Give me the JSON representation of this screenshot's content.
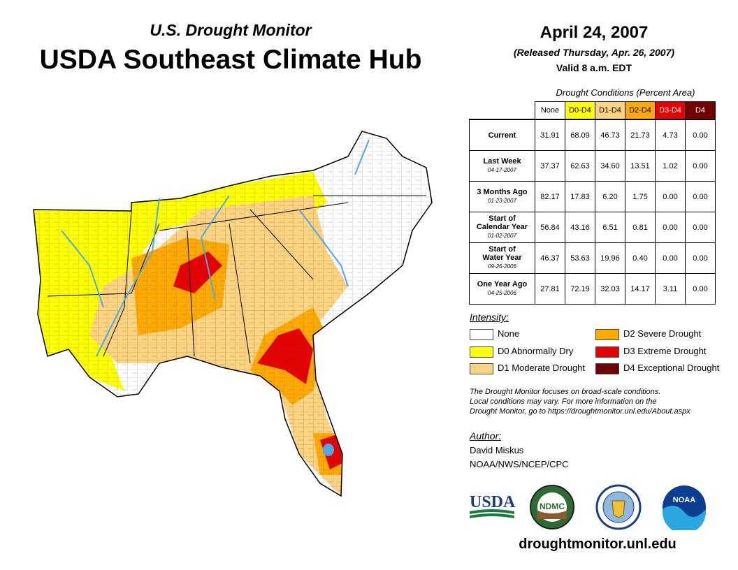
{
  "header": {
    "super_title": "U.S. Drought Monitor",
    "title": "USDA Southeast Climate Hub",
    "date": "April 24, 2007",
    "released": "(Released Thursday, Apr. 26, 2007)",
    "valid": "Valid 8 a.m. EDT"
  },
  "table": {
    "caption": "Drought Conditions (Percent Area)",
    "columns": [
      {
        "label": "None",
        "color": "#ffffff"
      },
      {
        "label": "D0-D4",
        "color": "#ffff00"
      },
      {
        "label": "D1-D4",
        "color": "#fcd37f"
      },
      {
        "label": "D2-D4",
        "color": "#ffaa00"
      },
      {
        "label": "D3-D4",
        "color": "#e60000"
      },
      {
        "label": "D4",
        "color": "#730000"
      }
    ],
    "rows": [
      {
        "line1": "Current",
        "line2": "",
        "date": "",
        "values": [
          "31.91",
          "68.09",
          "46.73",
          "21.73",
          "4.73",
          "0.00"
        ]
      },
      {
        "line1": "Last Week",
        "line2": "",
        "date": "04-17-2007",
        "values": [
          "37.37",
          "62.63",
          "34.60",
          "13.51",
          "1.02",
          "0.00"
        ]
      },
      {
        "line1": "3 Months Ago",
        "line2": "",
        "date": "01-23-2007",
        "values": [
          "82.17",
          "17.83",
          "6.20",
          "1.75",
          "0.00",
          "0.00"
        ]
      },
      {
        "line1": "Start of",
        "line2": "Calendar Year",
        "date": "01-02-2007",
        "values": [
          "56.84",
          "43.16",
          "6.51",
          "0.81",
          "0.00",
          "0.00"
        ]
      },
      {
        "line1": "Start of",
        "line2": "Water Year",
        "date": "09-26-2006",
        "values": [
          "46.37",
          "53.63",
          "19.96",
          "0.40",
          "0.00",
          "0.00"
        ]
      },
      {
        "line1": "One Year Ago",
        "line2": "",
        "date": "04-25-2006",
        "values": [
          "27.81",
          "72.19",
          "32.03",
          "14.17",
          "3.11",
          "0.00"
        ]
      }
    ]
  },
  "legend": {
    "title": "Intensity:",
    "items": [
      {
        "label": "None",
        "color": "#ffffff"
      },
      {
        "label": "D0 Abnormally Dry",
        "color": "#ffff00"
      },
      {
        "label": "D1 Moderate Drought",
        "color": "#fcd37f"
      },
      {
        "label": "D2 Severe Drought",
        "color": "#ffaa00"
      },
      {
        "label": "D3 Extreme Drought",
        "color": "#e60000"
      },
      {
        "label": "D4 Exceptional Drought",
        "color": "#730000"
      }
    ]
  },
  "note": {
    "line1": "The Drought Monitor focuses on broad-scale conditions.",
    "line2": "Local conditions may vary. For more information on the",
    "line3": "Drought Monitor, go to https://droughtmonitor.unl.edu/About.aspx"
  },
  "author": {
    "title": "Author:",
    "name": "David Miskus",
    "org": "NOAA/NWS/NCEP/CPC"
  },
  "logos": {
    "usda": "USDA",
    "ndmc": "NDMC",
    "noaa": "NOAA"
  },
  "footer": {
    "url": "droughtmonitor.unl.edu"
  },
  "colors": {
    "water": "#4ea9e8",
    "county_lines": "#555555"
  }
}
